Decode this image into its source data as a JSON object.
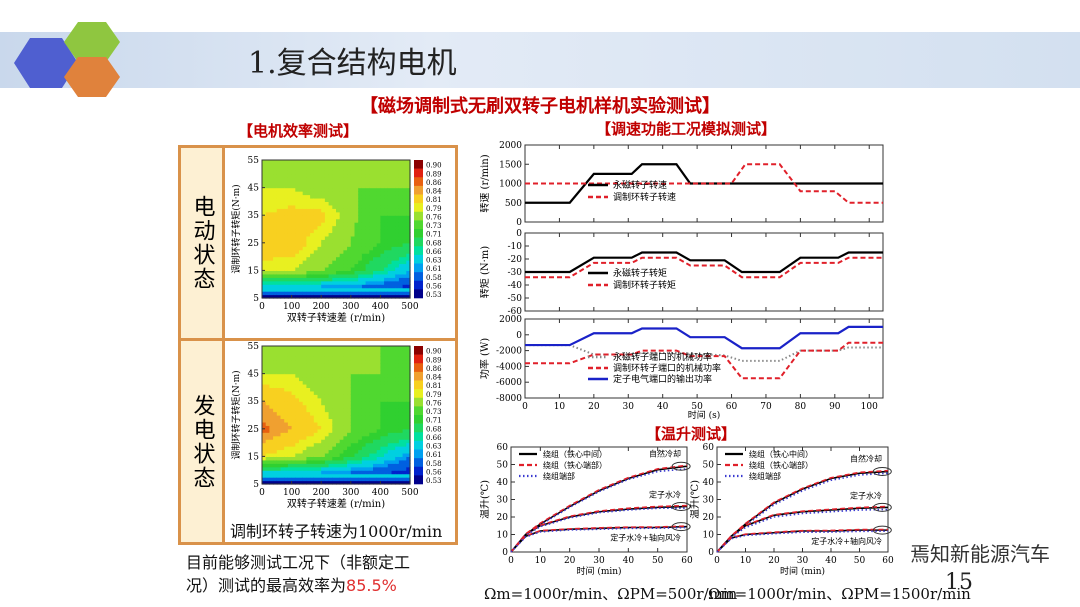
{
  "header": {
    "title": "1.复合结构电机",
    "colors": {
      "hex_blue": "#4f5fd0",
      "hex_green": "#8fc640",
      "hex_orange": "#e0823c"
    }
  },
  "main_title": "【磁场调制式无刷双转子电机样机实验测试】",
  "efficiency_section": {
    "title": "【电机效率测试】",
    "motor_label": "电动状态",
    "generator_label": "发电状态",
    "caption": "调制环转子转速为1000r/min"
  },
  "speed_section": {
    "title": "【调速功能工况模拟测试】"
  },
  "temp_section": {
    "title": "【温升测试】",
    "left_caption": "Ωm=1000r/min、ΩPM=500r/min",
    "right_caption": "Ωm=1000r/min、ΩPM=1500r/min"
  },
  "conclusion": {
    "line1": "目前能够测试工况下（非额定工",
    "line2_prefix": "况）测试的最高效率为",
    "value": "85.5%"
  },
  "page_number": "15",
  "watermark": "焉知新能源汽车",
  "chart_data": [
    {
      "id": "motor_eff",
      "type": "heatmap",
      "xlabel": "双转子转速差 (r/min)",
      "ylabel": "调制环转子转矩(N·m)",
      "xlim": [
        0,
        500
      ],
      "ylim": [
        5,
        55
      ],
      "xticks": [
        0,
        100,
        200,
        300,
        400,
        500
      ],
      "yticks": [
        5,
        15,
        25,
        35,
        45,
        55
      ],
      "colorbar": [
        0.9,
        0.89,
        0.86,
        0.84,
        0.81,
        0.79,
        0.76,
        0.73,
        0.71,
        0.68,
        0.66,
        0.63,
        0.61,
        0.58,
        0.56,
        0.53
      ],
      "x": [
        0,
        100,
        200,
        300,
        400,
        500
      ],
      "y": [
        5,
        15,
        25,
        35,
        45,
        55
      ],
      "z": [
        [
          0.53,
          0.53,
          0.53,
          0.53,
          0.53,
          0.53
        ],
        [
          0.79,
          0.79,
          0.76,
          0.73,
          0.68,
          0.63
        ],
        [
          0.84,
          0.83,
          0.79,
          0.76,
          0.73,
          0.71
        ],
        [
          0.81,
          0.82,
          0.82,
          0.77,
          0.73,
          0.73
        ],
        [
          0.79,
          0.79,
          0.77,
          0.76,
          0.76,
          0.76
        ],
        [
          0.76,
          0.76,
          0.76,
          0.76,
          0.76,
          0.76
        ]
      ]
    },
    {
      "id": "gen_eff",
      "type": "heatmap",
      "xlabel": "双转子转速差 (r/min)",
      "ylabel": "调制环转子转矩(N·m)",
      "xlim": [
        0,
        500
      ],
      "ylim": [
        5,
        55
      ],
      "xticks": [
        0,
        100,
        200,
        300,
        400,
        500
      ],
      "yticks": [
        5,
        15,
        25,
        35,
        45,
        55
      ],
      "colorbar": [
        0.9,
        0.89,
        0.86,
        0.84,
        0.81,
        0.79,
        0.76,
        0.73,
        0.71,
        0.68,
        0.66,
        0.63,
        0.61,
        0.58,
        0.56,
        0.53
      ],
      "x": [
        0,
        100,
        200,
        300,
        400,
        500
      ],
      "y": [
        5,
        15,
        25,
        35,
        45,
        55
      ],
      "z": [
        [
          0.53,
          0.53,
          0.53,
          0.53,
          0.53,
          0.53
        ],
        [
          0.81,
          0.79,
          0.76,
          0.71,
          0.66,
          0.61
        ],
        [
          0.87,
          0.84,
          0.81,
          0.76,
          0.73,
          0.71
        ],
        [
          0.84,
          0.82,
          0.79,
          0.76,
          0.73,
          0.73
        ],
        [
          0.79,
          0.79,
          0.77,
          0.76,
          0.76,
          0.73
        ],
        [
          0.76,
          0.76,
          0.76,
          0.76,
          0.76,
          0.76
        ]
      ]
    },
    {
      "id": "speed",
      "type": "line",
      "ylabel": "转速 (r/min)",
      "xlim": [
        0,
        104
      ],
      "ylim": [
        0,
        2000
      ],
      "yticks": [
        0,
        500,
        1000,
        1500,
        2000
      ],
      "xticks": [
        0,
        10,
        20,
        30,
        40,
        50,
        60,
        70,
        80,
        90,
        100
      ],
      "series": [
        {
          "name": "永磁转子转速",
          "color": "#000000",
          "style": "solid",
          "x": [
            0,
            13,
            20,
            31,
            34,
            44,
            48,
            104
          ],
          "y": [
            500,
            500,
            1250,
            1250,
            1500,
            1500,
            1000,
            1000
          ]
        },
        {
          "name": "调制环转子转速",
          "color": "#e0202a",
          "style": "dashed",
          "x": [
            0,
            60,
            64,
            74,
            80,
            90,
            94,
            104
          ],
          "y": [
            1000,
            1000,
            1500,
            1500,
            800,
            800,
            500,
            500
          ]
        }
      ]
    },
    {
      "id": "torque",
      "type": "line",
      "ylabel": "转矩 (N·m)",
      "xlim": [
        0,
        104
      ],
      "ylim": [
        -60,
        0
      ],
      "yticks": [
        0,
        -10,
        -20,
        -30,
        -40,
        -50,
        -60
      ],
      "xticks": [
        0,
        10,
        20,
        30,
        40,
        50,
        60,
        70,
        80,
        90,
        100
      ],
      "series": [
        {
          "name": "永磁转子转矩",
          "color": "#000000",
          "style": "solid",
          "x": [
            0,
            13,
            20,
            31,
            34,
            44,
            48,
            58,
            63,
            74,
            80,
            91,
            94,
            104
          ],
          "y": [
            -30,
            -30,
            -19,
            -19,
            -15,
            -15,
            -21,
            -21,
            -30,
            -30,
            -19,
            -19,
            -15,
            -15
          ]
        },
        {
          "name": "调制环转子转矩",
          "color": "#e0202a",
          "style": "dashed",
          "x": [
            0,
            13,
            20,
            31,
            34,
            44,
            48,
            58,
            63,
            74,
            80,
            91,
            94,
            104
          ],
          "y": [
            -34,
            -34,
            -23,
            -23,
            -19,
            -19,
            -25,
            -25,
            -34,
            -34,
            -23,
            -23,
            -19,
            -19
          ]
        }
      ]
    },
    {
      "id": "power",
      "type": "line",
      "ylabel": "功率 (W)",
      "xlabel": "时间 (s)",
      "xlim": [
        0,
        104
      ],
      "ylim": [
        -8000,
        2000
      ],
      "yticks": [
        2000,
        0,
        -2000,
        -4000,
        -6000,
        -8000
      ],
      "xticks": [
        0,
        10,
        20,
        30,
        40,
        50,
        60,
        70,
        80,
        90,
        100
      ],
      "series": [
        {
          "name": "永磁转子端口的机械功率",
          "color": "#888888",
          "style": "dotted",
          "x": [
            0,
            13,
            20,
            31,
            34,
            44,
            48,
            58,
            63,
            74,
            80,
            91,
            94,
            104
          ],
          "y": [
            -1300,
            -1300,
            -2500,
            -2500,
            -2300,
            -2300,
            -2400,
            -2600,
            -3300,
            -3300,
            -2000,
            -2000,
            -1600,
            -1600
          ]
        },
        {
          "name": "调制环转子端口的机械功率",
          "color": "#e0202a",
          "style": "dashed",
          "x": [
            0,
            13,
            20,
            31,
            34,
            44,
            48,
            58,
            63,
            74,
            80,
            91,
            94,
            104
          ],
          "y": [
            -3600,
            -3600,
            -2500,
            -2500,
            -2000,
            -2000,
            -2700,
            -2700,
            -5500,
            -5500,
            -2000,
            -2000,
            -1000,
            -1000
          ]
        },
        {
          "name": "定子电气端口的输出功率",
          "color": "#1a22c8",
          "style": "solid",
          "x": [
            0,
            13,
            20,
            31,
            34,
            44,
            48,
            58,
            63,
            74,
            80,
            91,
            94,
            104
          ],
          "y": [
            -1300,
            -1300,
            200,
            200,
            800,
            800,
            -300,
            -300,
            -1700,
            -1700,
            200,
            200,
            1000,
            1000
          ]
        }
      ]
    },
    {
      "id": "temp_left",
      "type": "line",
      "ylabel": "温升(℃)",
      "xlabel": "时间 (min)",
      "xlim": [
        0,
        60
      ],
      "ylim": [
        0,
        60
      ],
      "xticks": [
        0,
        10,
        20,
        30,
        40,
        50,
        60
      ],
      "yticks": [
        0,
        10,
        20,
        30,
        40,
        50,
        60
      ],
      "legend": [
        {
          "name": "绕组（铁心中间）",
          "color": "#000000",
          "style": "solid"
        },
        {
          "name": "绕组（铁心端部）",
          "color": "#e0202a",
          "style": "dashed"
        },
        {
          "name": "绕组端部",
          "color": "#3a3ad0",
          "style": "dotted"
        }
      ],
      "annotations": [
        "自然冷却",
        "定子水冷",
        "定子水冷+轴向风冷"
      ],
      "x": [
        0,
        5,
        10,
        20,
        30,
        40,
        50,
        60
      ],
      "curves": [
        {
          "condition": "自然冷却",
          "y": [
            [
              0,
              10,
              16,
              26,
              35,
              42,
              47,
              49
            ],
            [
              0,
              10.3,
              16.5,
              26.5,
              35.5,
              42.5,
              47.5,
              49.5
            ],
            [
              0,
              9.5,
              15.5,
              25.5,
              34.5,
              41.5,
              46,
              47.5
            ]
          ]
        },
        {
          "condition": "定子水冷",
          "y": [
            [
              0,
              10,
              15,
              20,
              23,
              24.5,
              25.5,
              26
            ],
            [
              0,
              10.3,
              15.3,
              20.4,
              23.4,
              25,
              26,
              26.5
            ],
            [
              0,
              9.5,
              14.5,
              19.5,
              22.5,
              24,
              25,
              25
            ]
          ]
        },
        {
          "condition": "定子水冷+轴向风冷",
          "y": [
            [
              0,
              9,
              12,
              13,
              13.5,
              14,
              14,
              14.5
            ],
            [
              0,
              9.2,
              12.2,
              13.2,
              13.8,
              14.2,
              14.3,
              14.8
            ],
            [
              0,
              8.6,
              11.5,
              12.6,
              13,
              13.5,
              13.6,
              14
            ]
          ]
        }
      ]
    },
    {
      "id": "temp_right",
      "type": "line",
      "ylabel": "温升(℃)",
      "xlabel": "时间 (min)",
      "xlim": [
        0,
        60
      ],
      "ylim": [
        0,
        60
      ],
      "xticks": [
        0,
        10,
        20,
        30,
        40,
        50,
        60
      ],
      "yticks": [
        0,
        10,
        20,
        30,
        40,
        50,
        60
      ],
      "legend": [
        {
          "name": "绕组（铁心中间）",
          "color": "#000000",
          "style": "solid"
        },
        {
          "name": "绕组（铁心端部）",
          "color": "#e0202a",
          "style": "dashed"
        },
        {
          "name": "绕组端部",
          "color": "#3a3ad0",
          "style": "dotted"
        }
      ],
      "annotations": [
        "自然冷却",
        "定子水冷",
        "定子水冷+轴向风冷"
      ],
      "x": [
        0,
        5,
        10,
        20,
        30,
        40,
        50,
        60
      ],
      "curves": [
        {
          "condition": "自然冷却",
          "y": [
            [
              0,
              9,
              16,
              28,
              36,
              42,
              45,
              46
            ],
            [
              0,
              9.2,
              16.3,
              28.4,
              36.4,
              42.4,
              45.5,
              46.5
            ],
            [
              0,
              8.5,
              15.2,
              27,
              35,
              41,
              44,
              45
            ]
          ]
        },
        {
          "condition": "定子水冷",
          "y": [
            [
              0,
              9,
              15,
              21,
              23,
              24,
              25,
              25.5
            ],
            [
              0,
              9.2,
              15.3,
              21.3,
              23.3,
              24.4,
              25.4,
              26
            ],
            [
              0,
              8.4,
              14,
              20,
              22,
              23,
              24,
              24.3
            ]
          ]
        },
        {
          "condition": "定子水冷+轴向风冷",
          "y": [
            [
              0,
              8,
              10,
              11,
              12,
              12,
              12.5,
              12.5
            ],
            [
              0,
              8.2,
              10.2,
              11.3,
              12.2,
              12.3,
              12.8,
              12.8
            ],
            [
              0,
              7.6,
              9.5,
              10.5,
              11.3,
              11.4,
              11.8,
              11.9
            ]
          ]
        }
      ]
    }
  ]
}
